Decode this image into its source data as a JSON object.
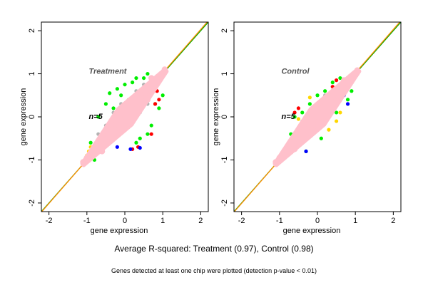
{
  "figure": {
    "caption": "Average R-squared: Treatment (0.97), Control (0.98)",
    "footnote": "Genes detected at least one chip were plotted (detection p-value < 0.01)"
  },
  "chart_data": [
    {
      "type": "scatter",
      "title": "Treatment",
      "annotation": "n=5",
      "xlabel": "gene expression",
      "ylabel": "gene expression",
      "xlim": [
        -2.2,
        2.2
      ],
      "ylim": [
        -2.2,
        2.2
      ],
      "xticks": [
        "-2",
        "-1",
        "0",
        "1",
        "2"
      ],
      "yticks": [
        "-2",
        "-1",
        "0",
        "1",
        "2"
      ],
      "reference_lines": [
        {
          "slope": 1,
          "intercept": 0,
          "color": "#00aa00"
        },
        {
          "slope": 1.01,
          "intercept": 0.01,
          "color": "#ff8c00"
        }
      ],
      "series": [
        {
          "color": "#b3b3b3",
          "points": [
            [
              -1.0,
              -1.0
            ],
            [
              -0.85,
              -0.8
            ],
            [
              -0.6,
              -0.65
            ],
            [
              -0.4,
              -0.35
            ],
            [
              -0.2,
              -0.15
            ],
            [
              0.0,
              0.05
            ],
            [
              0.2,
              0.2
            ],
            [
              0.4,
              0.35
            ],
            [
              0.6,
              0.55
            ],
            [
              0.8,
              0.8
            ],
            [
              -0.5,
              -0.2
            ],
            [
              -0.3,
              0.1
            ],
            [
              0.1,
              0.4
            ],
            [
              0.3,
              0.6
            ],
            [
              0.5,
              0.75
            ],
            [
              -0.7,
              -0.4
            ],
            [
              0.2,
              -0.1
            ],
            [
              0.4,
              0.1
            ],
            [
              0.6,
              0.3
            ],
            [
              -0.1,
              0.3
            ]
          ]
        },
        {
          "color": "#00ee00",
          "points": [
            [
              -0.4,
              0.55
            ],
            [
              -0.2,
              0.65
            ],
            [
              0.0,
              0.75
            ],
            [
              0.3,
              0.9
            ],
            [
              0.6,
              1.0
            ],
            [
              -0.7,
              0.0
            ],
            [
              -0.5,
              0.3
            ],
            [
              -0.1,
              0.5
            ],
            [
              0.2,
              0.8
            ],
            [
              0.5,
              0.9
            ],
            [
              -0.9,
              -0.6
            ],
            [
              -0.3,
              0.2
            ],
            [
              0.8,
              0.3
            ],
            [
              1.0,
              0.5
            ],
            [
              0.7,
              -0.2
            ],
            [
              0.4,
              -0.5
            ],
            [
              -0.8,
              -1.0
            ],
            [
              0.9,
              0.2
            ],
            [
              0.3,
              -0.6
            ],
            [
              0.6,
              -0.4
            ]
          ]
        },
        {
          "color": "#ff0000",
          "points": [
            [
              0.85,
              0.6
            ],
            [
              0.9,
              0.4
            ],
            [
              0.7,
              -0.4
            ],
            [
              0.8,
              0.3
            ],
            [
              0.2,
              -0.75
            ],
            [
              0.35,
              -0.7
            ]
          ]
        },
        {
          "color": "#0000ff",
          "points": [
            [
              0.15,
              -0.75
            ],
            [
              -0.2,
              -0.7
            ],
            [
              0.4,
              -0.72
            ]
          ]
        },
        {
          "color": "#ffd700",
          "points": [
            [
              -0.95,
              -0.8
            ],
            [
              -1.0,
              -0.9
            ],
            [
              -0.9,
              -0.7
            ]
          ]
        },
        {
          "color": "#ffc0cb",
          "points": [
            [
              -1.1,
              -1.05
            ],
            [
              -1.0,
              -0.95
            ],
            [
              -0.9,
              -0.85
            ],
            [
              -0.8,
              -0.8
            ],
            [
              -0.7,
              -0.65
            ],
            [
              -0.6,
              -0.6
            ],
            [
              -0.5,
              -0.45
            ],
            [
              -0.4,
              -0.4
            ],
            [
              -0.3,
              -0.25
            ],
            [
              -0.2,
              -0.2
            ],
            [
              -0.1,
              -0.05
            ],
            [
              0.0,
              0.0
            ],
            [
              0.1,
              0.1
            ],
            [
              0.2,
              0.2
            ],
            [
              0.3,
              0.3
            ],
            [
              0.4,
              0.4
            ],
            [
              0.5,
              0.5
            ],
            [
              0.6,
              0.6
            ],
            [
              0.7,
              0.7
            ],
            [
              0.8,
              0.8
            ],
            [
              0.9,
              0.9
            ],
            [
              1.0,
              1.0
            ],
            [
              1.05,
              1.1
            ],
            [
              -0.5,
              -0.3
            ],
            [
              -0.3,
              -0.1
            ],
            [
              0.1,
              0.3
            ],
            [
              0.3,
              0.5
            ],
            [
              -0.3,
              -0.5
            ],
            [
              0.1,
              -0.1
            ],
            [
              0.3,
              0.1
            ],
            [
              0.5,
              0.3
            ],
            [
              -0.1,
              0.15
            ],
            [
              0.6,
              0.4
            ],
            [
              -0.6,
              -0.8
            ],
            [
              0.7,
              0.9
            ]
          ]
        }
      ]
    },
    {
      "type": "scatter",
      "title": "Control",
      "annotation": "n=5",
      "xlabel": "gene expression",
      "ylabel": "gene expression",
      "xlim": [
        -2.2,
        2.2
      ],
      "ylim": [
        -2.2,
        2.2
      ],
      "xticks": [
        "-2",
        "-1",
        "0",
        "1",
        "2"
      ],
      "yticks": [
        "-2",
        "-1",
        "0",
        "1",
        "2"
      ],
      "reference_lines": [
        {
          "slope": 1,
          "intercept": 0,
          "color": "#00aa00"
        },
        {
          "slope": 1.01,
          "intercept": 0.01,
          "color": "#ff8c00"
        }
      ],
      "series": [
        {
          "color": "#b3b3b3",
          "points": [
            [
              -0.9,
              -0.9
            ],
            [
              -0.6,
              -0.55
            ],
            [
              -0.3,
              -0.3
            ],
            [
              0.0,
              0.0
            ],
            [
              0.3,
              0.3
            ],
            [
              0.6,
              0.6
            ],
            [
              0.9,
              0.9
            ],
            [
              -0.4,
              -0.1
            ],
            [
              -0.1,
              0.2
            ],
            [
              0.2,
              0.5
            ]
          ]
        },
        {
          "color": "#00ee00",
          "points": [
            [
              -0.4,
              0.1
            ],
            [
              -0.2,
              0.3
            ],
            [
              0.0,
              0.5
            ],
            [
              0.2,
              0.6
            ],
            [
              0.4,
              0.8
            ],
            [
              0.6,
              0.9
            ],
            [
              -0.7,
              -0.4
            ],
            [
              -0.5,
              -0.6
            ],
            [
              -0.3,
              -0.8
            ],
            [
              0.1,
              -0.5
            ],
            [
              0.5,
              0.1
            ],
            [
              0.8,
              0.4
            ],
            [
              0.9,
              0.6
            ],
            [
              -0.6,
              0.0
            ],
            [
              -0.8,
              -0.7
            ]
          ]
        },
        {
          "color": "#ff0000",
          "points": [
            [
              -0.6,
              0.1
            ],
            [
              -0.5,
              0.2
            ],
            [
              0.4,
              0.7
            ],
            [
              0.5,
              0.85
            ],
            [
              0.7,
              0.6
            ]
          ]
        },
        {
          "color": "#0000ff",
          "points": [
            [
              -0.7,
              -0.6
            ],
            [
              -0.4,
              -0.4
            ],
            [
              -0.3,
              -0.8
            ],
            [
              0.7,
              0.5
            ],
            [
              0.8,
              0.3
            ]
          ]
        },
        {
          "color": "#ffd700",
          "points": [
            [
              -0.5,
              -0.05
            ],
            [
              -0.2,
              0.45
            ],
            [
              0.3,
              -0.3
            ],
            [
              0.6,
              0.1
            ],
            [
              0.5,
              -0.1
            ]
          ]
        },
        {
          "color": "#ffc0cb",
          "points": [
            [
              -1.1,
              -1.05
            ],
            [
              -1.0,
              -0.95
            ],
            [
              -0.9,
              -0.85
            ],
            [
              -0.8,
              -0.8
            ],
            [
              -0.7,
              -0.65
            ],
            [
              -0.6,
              -0.6
            ],
            [
              -0.5,
              -0.45
            ],
            [
              -0.4,
              -0.4
            ],
            [
              -0.3,
              -0.25
            ],
            [
              -0.2,
              -0.2
            ],
            [
              -0.1,
              -0.05
            ],
            [
              0.0,
              0.0
            ],
            [
              0.1,
              0.1
            ],
            [
              0.2,
              0.2
            ],
            [
              0.3,
              0.3
            ],
            [
              0.4,
              0.4
            ],
            [
              0.5,
              0.5
            ],
            [
              0.6,
              0.6
            ],
            [
              0.7,
              0.7
            ],
            [
              0.8,
              0.8
            ],
            [
              0.9,
              0.9
            ],
            [
              1.0,
              1.0
            ],
            [
              1.05,
              1.08
            ],
            [
              -0.5,
              -0.3
            ],
            [
              -0.3,
              -0.1
            ],
            [
              0.1,
              0.3
            ],
            [
              0.3,
              0.5
            ],
            [
              -0.3,
              -0.45
            ],
            [
              0.1,
              -0.1
            ],
            [
              0.3,
              0.15
            ],
            [
              0.5,
              0.35
            ],
            [
              -0.1,
              0.1
            ],
            [
              0.6,
              0.45
            ],
            [
              -0.6,
              -0.75
            ],
            [
              0.7,
              0.85
            ]
          ]
        }
      ]
    }
  ]
}
